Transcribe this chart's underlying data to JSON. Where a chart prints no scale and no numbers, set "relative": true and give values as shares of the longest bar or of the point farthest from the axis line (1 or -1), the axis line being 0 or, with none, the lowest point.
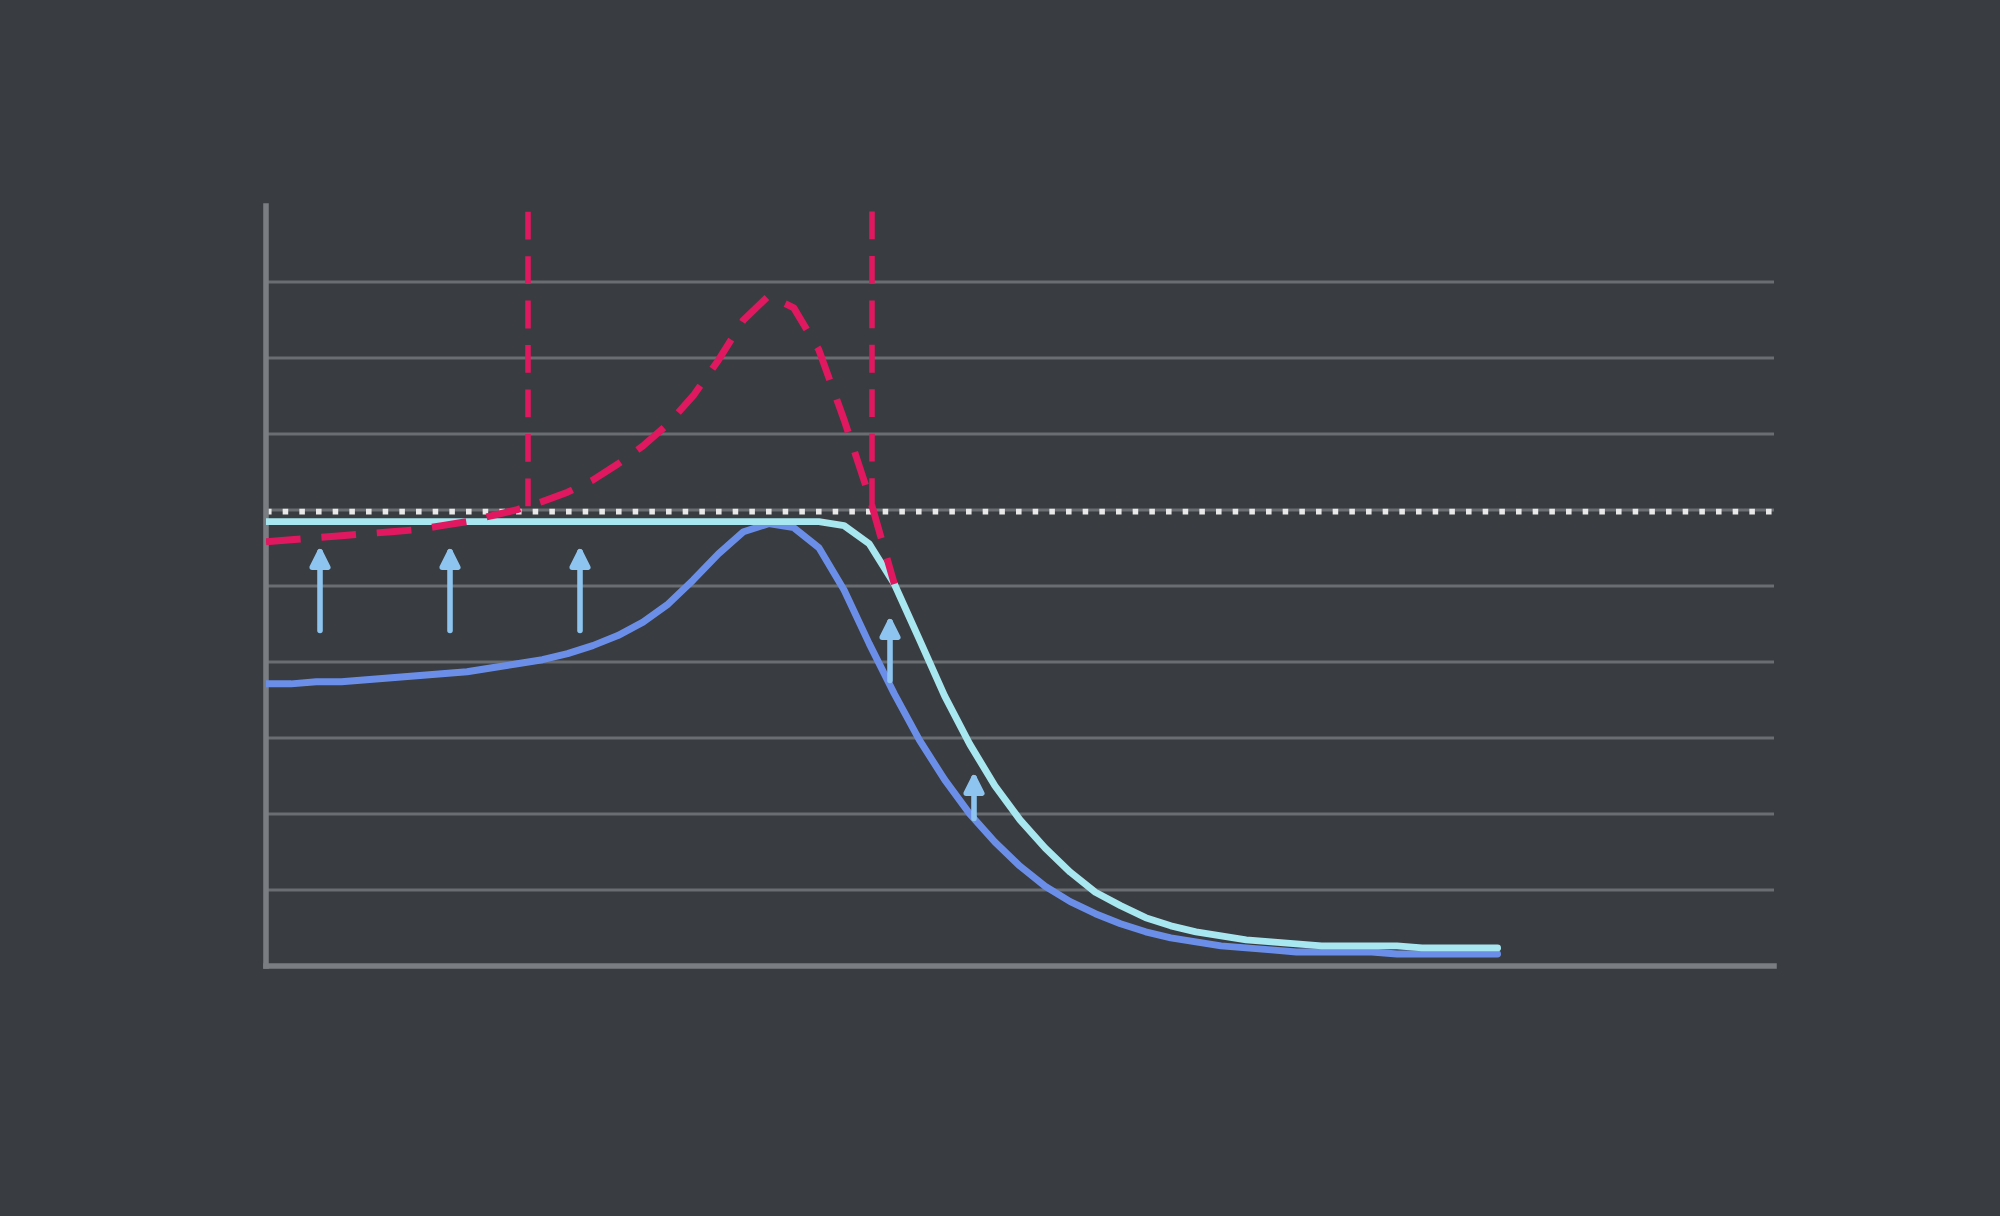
{
  "chart_data": {
    "type": "line",
    "relative": true,
    "grid": "y",
    "categories": [
      null,
      null,
      null,
      null,
      null,
      null,
      null,
      null,
      null,
      null,
      null,
      null,
      null,
      null,
      null,
      null,
      null,
      null,
      null,
      null,
      null,
      null,
      null,
      null,
      null,
      null,
      null,
      null,
      null,
      null,
      null,
      null,
      null,
      null,
      null,
      null,
      null,
      null,
      null,
      null,
      null,
      null,
      null,
      null,
      null,
      null,
      null,
      null,
      null,
      null,
      null,
      null,
      null,
      null,
      null,
      null,
      null,
      null,
      null,
      null,
      null
    ],
    "series": [
      {
        "color": "#6b8fe8",
        "line_style": "solid",
        "values": [
          0.421,
          0.421,
          0.424,
          0.424,
          0.427,
          0.43,
          0.433,
          0.436,
          0.439,
          0.445,
          0.451,
          0.457,
          0.466,
          0.478,
          0.493,
          0.513,
          0.54,
          0.576,
          0.615,
          0.648,
          0.66,
          0.654,
          0.624,
          0.561,
          0.481,
          0.406,
          0.337,
          0.278,
          0.227,
          0.185,
          0.149,
          0.119,
          0.096,
          0.078,
          0.063,
          0.051,
          0.042,
          0.036,
          0.03,
          0.027,
          0.024,
          0.021,
          0.021,
          0.021,
          0.021,
          0.018,
          0.018,
          0.018,
          0.018,
          0.018,
          null,
          null,
          null,
          null,
          null,
          null,
          null,
          null,
          null,
          null,
          null
        ]
      },
      {
        "color": "#a8e6f0",
        "line_style": "solid",
        "values": [
          0.663,
          0.663,
          0.663,
          0.663,
          0.663,
          0.663,
          0.663,
          0.663,
          0.663,
          0.663,
          0.663,
          0.663,
          0.663,
          0.663,
          0.663,
          0.663,
          0.663,
          0.663,
          0.663,
          0.663,
          0.663,
          0.663,
          0.663,
          0.657,
          0.63,
          0.57,
          0.487,
          0.403,
          0.331,
          0.269,
          0.218,
          0.176,
          0.14,
          0.11,
          0.09,
          0.072,
          0.06,
          0.051,
          0.045,
          0.039,
          0.036,
          0.033,
          0.03,
          0.03,
          0.03,
          0.03,
          0.027,
          0.027,
          0.027,
          0.027,
          null,
          null,
          null,
          null,
          null,
          null,
          null,
          null,
          null,
          null,
          null
        ]
      },
      {
        "color": "#e0185f",
        "line_style": "dashed",
        "values": [
          0.633,
          0.636,
          0.639,
          0.642,
          0.645,
          0.648,
          0.651,
          0.657,
          0.663,
          0.672,
          0.681,
          0.693,
          0.707,
          0.725,
          0.749,
          0.776,
          0.809,
          0.851,
          0.904,
          0.964,
          1.0,
          0.982,
          0.919,
          0.815,
          0.701,
          0.57,
          null,
          null,
          null,
          null,
          null,
          null,
          null,
          null,
          null,
          null,
          null,
          null,
          null,
          null,
          null,
          null,
          null,
          null,
          null,
          null,
          null,
          null,
          null,
          null,
          null,
          null,
          null,
          null,
          null,
          null,
          null,
          null,
          null,
          null,
          null
        ]
      }
    ],
    "ref_lines": [
      {
        "axis": "y",
        "value": 0.678,
        "color": "#e8e8e8",
        "line_style": "dotted"
      }
    ]
  }
}
